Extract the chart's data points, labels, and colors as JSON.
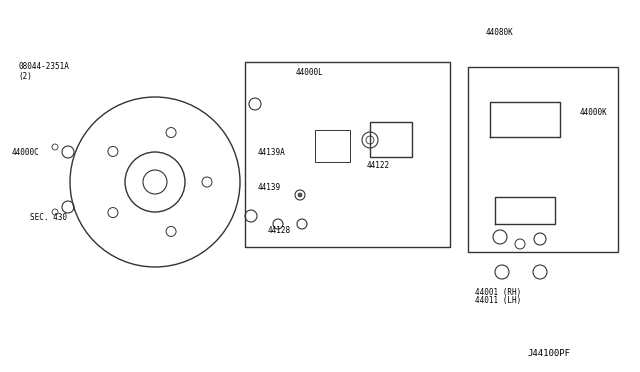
{
  "bg_color": "#ffffff",
  "line_color": "#333333",
  "label_color": "#000000",
  "fig_width": 6.4,
  "fig_height": 3.72,
  "dpi": 100,
  "labels": {
    "top_bolt": "08044-2351A\n(2)",
    "caliper_assembly": "44000C",
    "sec_label": "SEC. 430",
    "bolt_label_139A": "44139A",
    "bolt_label_139": "44139",
    "small_bolt": "44128",
    "caliper_body": "44122",
    "caliper_exploded": "44000L",
    "pad_set_top": "44080K",
    "pad_set": "44000K",
    "caliper_rh": "44001 (RH)",
    "caliper_lh": "44011 (LH)",
    "diagram_code": "J44100PF"
  }
}
